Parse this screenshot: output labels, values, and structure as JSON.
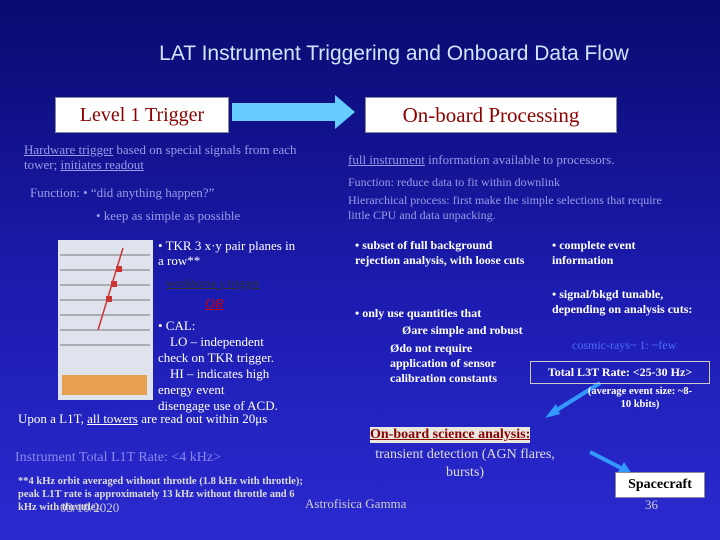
{
  "title": "LAT Instrument Triggering and Onboard Data Flow",
  "left": {
    "header": "Level 1 Trigger",
    "intro": {
      "hardware": "Hardware trigger",
      "mid": "based on special signals from each tower;",
      "readout": "initiates readout"
    },
    "function": "Function: • “did anything happen?”",
    "simple": "• keep as simple as possible",
    "tkr": "• TKR 3 x·y pair planes in a row**",
    "workhorse": "workhorse γ trigger",
    "or": "OR",
    "cal": "• CAL:",
    "lo": "LO – independent check on TKR trigger.",
    "hi": "HI – indicates high energy event",
    "acd": "disengage use of ACD.",
    "upon": {
      "pre": "Upon a L1T,",
      "all": "all towers",
      "post": "are read out within 20μs"
    },
    "rate": "Instrument Total L1T Rate: <4 kHz>",
    "note": "**4 kHz orbit averaged without throttle (1.8 kHz with throttle); peak L1T rate is approximately 13 kHz without throttle and 6 kHz with throttle)."
  },
  "right": {
    "header": "On-board Processing",
    "full": {
      "u": "full instrument",
      "rest": "information available to processors."
    },
    "function": "Function: reduce data to fit within downlink",
    "hier": "Hierarchical process: first make the simple selections that require little CPU and data unpacking.",
    "subset": "• subset of full background rejection analysis, with loose cuts",
    "only": "• only use quantities that",
    "robust": "Øare simple and robust",
    "calib": "Ødo not require application of sensor calibration constants",
    "complete": "• complete event information",
    "tunable": "• signal/bkgd tunable, depending on analysis cuts:",
    "cosmic": "cosmic-rays~ 1: ~few",
    "l3t": "Total L3T Rate: <25-30 Hz>",
    "avg": "(average event size: ~8-10 kbits)",
    "science": "On-board science analysis:",
    "transient": "transient detection (AGN flares, bursts)",
    "spacecraft": "Spacecraft"
  },
  "footer": {
    "date": "03/10/2020",
    "center": "Astrofisica Gamma",
    "page": "36"
  }
}
